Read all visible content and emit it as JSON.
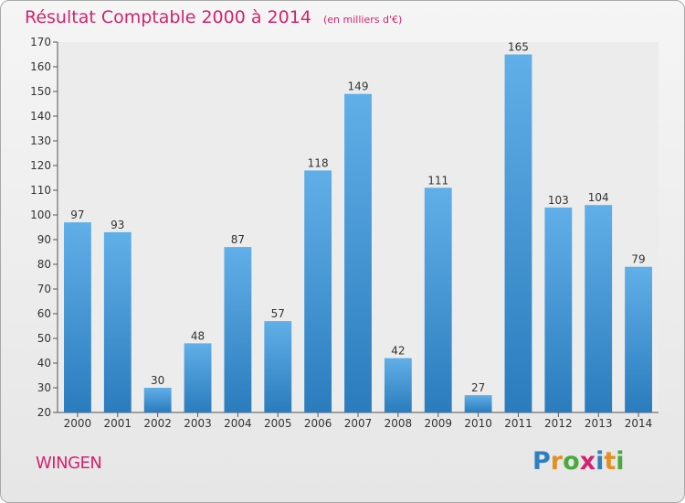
{
  "header": {
    "title": "Résultat Comptable 2000 à 2014",
    "unit": "(en milliers d'€)"
  },
  "footer": {
    "commune": "WINGEN",
    "logo": "Proxiti"
  },
  "colors": {
    "accent": "#d2246f",
    "bar_top": "#61afe8",
    "bar_bottom": "#2a7cbd",
    "plot_bg": "#ececec"
  },
  "chart_data": {
    "type": "bar",
    "title": "Résultat Comptable 2000 à 2014",
    "subtitle": "(en milliers d'€)",
    "xlabel": "",
    "ylabel": "",
    "categories": [
      "2000",
      "2001",
      "2002",
      "2003",
      "2004",
      "2005",
      "2006",
      "2007",
      "2008",
      "2009",
      "2010",
      "2011",
      "2012",
      "2013",
      "2014"
    ],
    "values": [
      97,
      93,
      30,
      48,
      87,
      57,
      118,
      149,
      42,
      111,
      27,
      165,
      103,
      104,
      79
    ],
    "ylim": [
      20,
      170
    ],
    "yticks": [
      20,
      30,
      40,
      50,
      60,
      70,
      80,
      90,
      100,
      110,
      120,
      130,
      140,
      150,
      160,
      170
    ],
    "grid": false,
    "legend": "none"
  }
}
